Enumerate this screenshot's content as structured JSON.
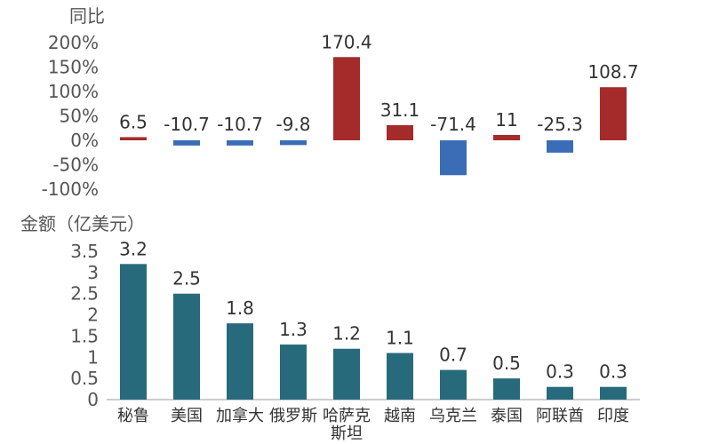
{
  "chart_data": [
    {
      "type": "bar",
      "ylabel": "同比",
      "categories": [
        "秘鲁",
        "美国",
        "加拿大",
        "俄罗斯",
        "哈萨克斯坦",
        "越南",
        "乌克兰",
        "泰国",
        "阿联酋",
        "印度"
      ],
      "values": [
        6.5,
        -10.7,
        -10.7,
        -9.8,
        170.4,
        31.1,
        -71.4,
        11,
        -25.3,
        108.7
      ],
      "data_labels": [
        "6.5",
        "-10.7",
        "-10.7",
        "-9.8",
        "170.4",
        "31.1",
        "-71.4",
        "11",
        "-25.3",
        "108.7"
      ],
      "ylim": [
        -100,
        200
      ],
      "yticks": [
        "200%",
        "150%",
        "100%",
        "50%",
        "0%",
        "-50%",
        "-100%"
      ],
      "grid": false,
      "colors": {
        "positive": "#A52A2A",
        "negative": "#3A6DB5"
      }
    },
    {
      "type": "bar",
      "ylabel": "金额（亿美元）",
      "categories": [
        "秘鲁",
        "美国",
        "加拿大",
        "俄罗斯",
        "哈萨克斯坦",
        "越南",
        "乌克兰",
        "泰国",
        "阿联酋",
        "印度"
      ],
      "values": [
        3.2,
        2.5,
        1.8,
        1.3,
        1.2,
        1.1,
        0.7,
        0.5,
        0.3,
        0.3
      ],
      "data_labels": [
        "3.2",
        "2.5",
        "1.8",
        "1.3",
        "1.2",
        "1.1",
        "0.7",
        "0.5",
        "0.3",
        "0.3"
      ],
      "ylim": [
        0,
        3.5
      ],
      "yticks": [
        "3.5",
        "3",
        "2.5",
        "2",
        "1.5",
        "1",
        "0.5",
        "0"
      ],
      "grid": false,
      "colors": {
        "bar": "#276A7C"
      }
    }
  ]
}
